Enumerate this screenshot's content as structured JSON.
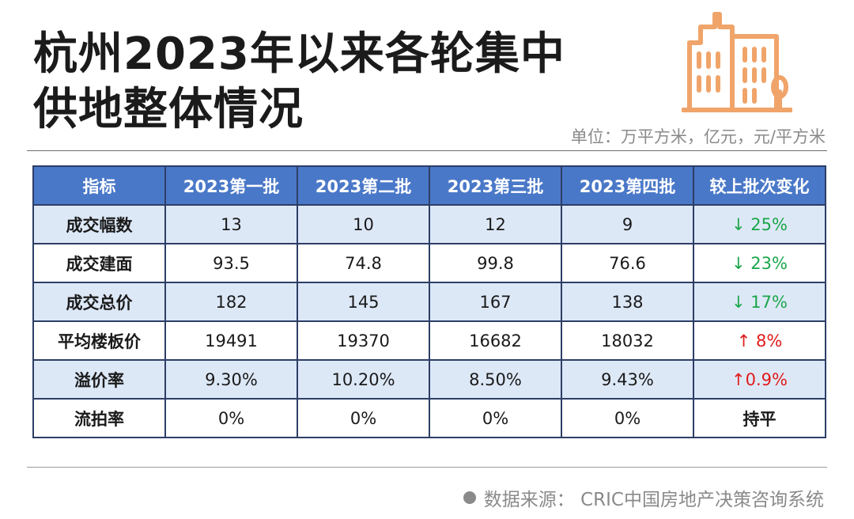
{
  "title": {
    "line1": "杭州2023年以来各轮集中",
    "line2": "供地整体情况"
  },
  "unit_note": "单位：万平方米，亿元，元/平方米",
  "table": {
    "headers": [
      "指标",
      "2023第一批",
      "2023第二批",
      "2023第三批",
      "2023第四批",
      "较上批次变化"
    ],
    "rows": [
      {
        "metric": "成交幅数",
        "values": [
          "13",
          "10",
          "12",
          "9"
        ],
        "change": "↓ 25%",
        "trend": "down"
      },
      {
        "metric": "成交建面",
        "values": [
          "93.5",
          "74.8",
          "99.8",
          "76.6"
        ],
        "change": "↓ 23%",
        "trend": "down"
      },
      {
        "metric": "成交总价",
        "values": [
          "182",
          "145",
          "167",
          "138"
        ],
        "change": "↓ 17%",
        "trend": "down"
      },
      {
        "metric": "平均楼板价",
        "values": [
          "19491",
          "19370",
          "16682",
          "18032"
        ],
        "change": "↑ 8%",
        "trend": "up"
      },
      {
        "metric": "溢价率",
        "values": [
          "9.30%",
          "10.20%",
          "8.50%",
          "9.43%"
        ],
        "change": "↑0.9%",
        "trend": "up"
      },
      {
        "metric": "流拍率",
        "values": [
          "0%",
          "0%",
          "0%",
          "0%"
        ],
        "change": "持平",
        "trend": "flat"
      }
    ]
  },
  "source": "数据来源：  CRIC中国房地产决策咨询系统",
  "icons": {
    "building": "building-icon",
    "bullet": "bullet-dot-icon"
  },
  "colors": {
    "header_bg": "#4a78c8",
    "row_shade": "#dde8f7",
    "down": "#1aa64a",
    "up": "#e01b1b",
    "icon": "#f0a46a"
  }
}
